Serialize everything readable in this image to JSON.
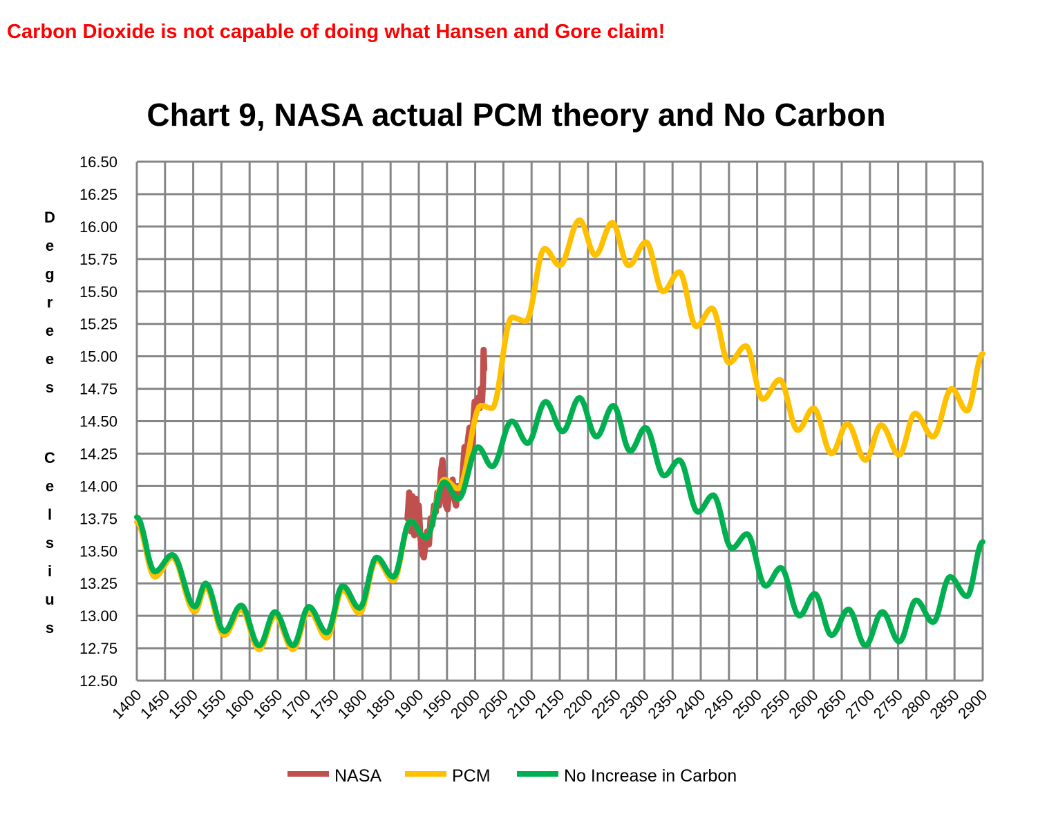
{
  "headline": "Carbon Dioxide is not capable of doing what Hansen and Gore claim!",
  "chart_data": {
    "type": "line",
    "title": "Chart 9, NASA actual PCM theory and No Carbon",
    "xlabel": "",
    "ylabel": "Degrees Celsius",
    "ylabel_words": [
      "Degrees",
      "Celsius"
    ],
    "xlim": [
      1400,
      2900
    ],
    "ylim": [
      12.5,
      16.5
    ],
    "x_ticks": [
      "1400",
      "1450",
      "1500",
      "1550",
      "1600",
      "1650",
      "1700",
      "1750",
      "1800",
      "1850",
      "1900",
      "1950",
      "2000",
      "2050",
      "2100",
      "2150",
      "2200",
      "2250",
      "2300",
      "2350",
      "2400",
      "2450",
      "2500",
      "2550",
      "2600",
      "2650",
      "2700",
      "2750",
      "2800",
      "2850",
      "2900"
    ],
    "y_ticks": [
      "12.50",
      "12.75",
      "13.00",
      "13.25",
      "13.50",
      "13.75",
      "14.00",
      "14.25",
      "14.50",
      "14.75",
      "15.00",
      "15.25",
      "15.50",
      "15.75",
      "16.00",
      "16.25",
      "16.50"
    ],
    "grid": true,
    "legend_position": "bottom",
    "series": [
      {
        "name": "NASA",
        "color": "#c0504d",
        "points": [
          [
            1880,
            13.75
          ],
          [
            1883,
            13.95
          ],
          [
            1886,
            13.65
          ],
          [
            1889,
            13.92
          ],
          [
            1892,
            13.62
          ],
          [
            1895,
            13.9
          ],
          [
            1898,
            13.7
          ],
          [
            1900,
            13.85
          ],
          [
            1903,
            13.6
          ],
          [
            1906,
            13.48
          ],
          [
            1909,
            13.45
          ],
          [
            1912,
            13.55
          ],
          [
            1915,
            13.65
          ],
          [
            1918,
            13.55
          ],
          [
            1921,
            13.75
          ],
          [
            1924,
            13.7
          ],
          [
            1927,
            13.85
          ],
          [
            1930,
            13.8
          ],
          [
            1933,
            13.95
          ],
          [
            1936,
            13.85
          ],
          [
            1939,
            14.1
          ],
          [
            1942,
            14.2
          ],
          [
            1945,
            13.95
          ],
          [
            1948,
            13.85
          ],
          [
            1951,
            13.82
          ],
          [
            1954,
            14.0
          ],
          [
            1957,
            13.95
          ],
          [
            1960,
            14.05
          ],
          [
            1963,
            13.9
          ],
          [
            1966,
            13.85
          ],
          [
            1969,
            14.0
          ],
          [
            1972,
            13.95
          ],
          [
            1975,
            13.95
          ],
          [
            1978,
            14.1
          ],
          [
            1981,
            14.3
          ],
          [
            1984,
            14.15
          ],
          [
            1987,
            14.35
          ],
          [
            1990,
            14.45
          ],
          [
            1993,
            14.3
          ],
          [
            1996,
            14.45
          ],
          [
            1999,
            14.65
          ],
          [
            2002,
            14.6
          ],
          [
            2005,
            14.68
          ],
          [
            2008,
            14.6
          ],
          [
            2010,
            14.75
          ],
          [
            2012,
            14.65
          ],
          [
            2014,
            14.8
          ],
          [
            2015,
            15.05
          ],
          [
            2016,
            14.9
          ]
        ]
      },
      {
        "name": "PCM",
        "color": "#ffc000",
        "points": [
          [
            1400,
            13.72
          ],
          [
            1432,
            13.3
          ],
          [
            1463,
            13.45
          ],
          [
            1503,
            13.03
          ],
          [
            1522,
            13.22
          ],
          [
            1555,
            12.85
          ],
          [
            1585,
            13.05
          ],
          [
            1617,
            12.74
          ],
          [
            1645,
            13.0
          ],
          [
            1677,
            12.74
          ],
          [
            1705,
            13.04
          ],
          [
            1737,
            12.83
          ],
          [
            1765,
            13.2
          ],
          [
            1795,
            13.02
          ],
          [
            1825,
            13.43
          ],
          [
            1855,
            13.27
          ],
          [
            1885,
            13.73
          ],
          [
            1913,
            13.6
          ],
          [
            1945,
            14.05
          ],
          [
            1970,
            13.98
          ],
          [
            2010,
            14.62
          ],
          [
            2030,
            14.6
          ],
          [
            2065,
            15.3
          ],
          [
            2090,
            15.27
          ],
          [
            2123,
            15.83
          ],
          [
            2150,
            15.7
          ],
          [
            2185,
            16.05
          ],
          [
            2213,
            15.78
          ],
          [
            2243,
            16.03
          ],
          [
            2272,
            15.7
          ],
          [
            2303,
            15.88
          ],
          [
            2333,
            15.5
          ],
          [
            2362,
            15.65
          ],
          [
            2392,
            15.23
          ],
          [
            2420,
            15.37
          ],
          [
            2450,
            14.95
          ],
          [
            2480,
            15.08
          ],
          [
            2510,
            14.67
          ],
          [
            2540,
            14.82
          ],
          [
            2572,
            14.43
          ],
          [
            2600,
            14.6
          ],
          [
            2632,
            14.25
          ],
          [
            2660,
            14.48
          ],
          [
            2692,
            14.2
          ],
          [
            2720,
            14.47
          ],
          [
            2752,
            14.24
          ],
          [
            2780,
            14.56
          ],
          [
            2812,
            14.38
          ],
          [
            2845,
            14.75
          ],
          [
            2872,
            14.58
          ],
          [
            2900,
            15.02
          ]
        ]
      },
      {
        "name": "No Increase in Carbon",
        "color": "#00b050",
        "points": [
          [
            1400,
            13.76
          ],
          [
            1432,
            13.34
          ],
          [
            1463,
            13.47
          ],
          [
            1503,
            13.07
          ],
          [
            1522,
            13.25
          ],
          [
            1555,
            12.88
          ],
          [
            1585,
            13.08
          ],
          [
            1617,
            12.77
          ],
          [
            1645,
            13.03
          ],
          [
            1677,
            12.77
          ],
          [
            1705,
            13.07
          ],
          [
            1737,
            12.87
          ],
          [
            1765,
            13.23
          ],
          [
            1795,
            13.06
          ],
          [
            1825,
            13.45
          ],
          [
            1855,
            13.3
          ],
          [
            1885,
            13.73
          ],
          [
            1913,
            13.6
          ],
          [
            1945,
            14.03
          ],
          [
            1970,
            13.9
          ],
          [
            2005,
            14.3
          ],
          [
            2030,
            14.15
          ],
          [
            2065,
            14.5
          ],
          [
            2093,
            14.33
          ],
          [
            2125,
            14.65
          ],
          [
            2155,
            14.42
          ],
          [
            2185,
            14.68
          ],
          [
            2215,
            14.38
          ],
          [
            2245,
            14.62
          ],
          [
            2275,
            14.27
          ],
          [
            2302,
            14.45
          ],
          [
            2335,
            14.08
          ],
          [
            2362,
            14.2
          ],
          [
            2395,
            13.8
          ],
          [
            2422,
            13.93
          ],
          [
            2455,
            13.52
          ],
          [
            2482,
            13.63
          ],
          [
            2515,
            13.23
          ],
          [
            2542,
            13.37
          ],
          [
            2575,
            13.0
          ],
          [
            2602,
            13.17
          ],
          [
            2632,
            12.85
          ],
          [
            2662,
            13.05
          ],
          [
            2692,
            12.77
          ],
          [
            2722,
            13.03
          ],
          [
            2752,
            12.8
          ],
          [
            2782,
            13.12
          ],
          [
            2812,
            12.95
          ],
          [
            2842,
            13.3
          ],
          [
            2872,
            13.15
          ],
          [
            2900,
            13.57
          ]
        ]
      }
    ]
  }
}
